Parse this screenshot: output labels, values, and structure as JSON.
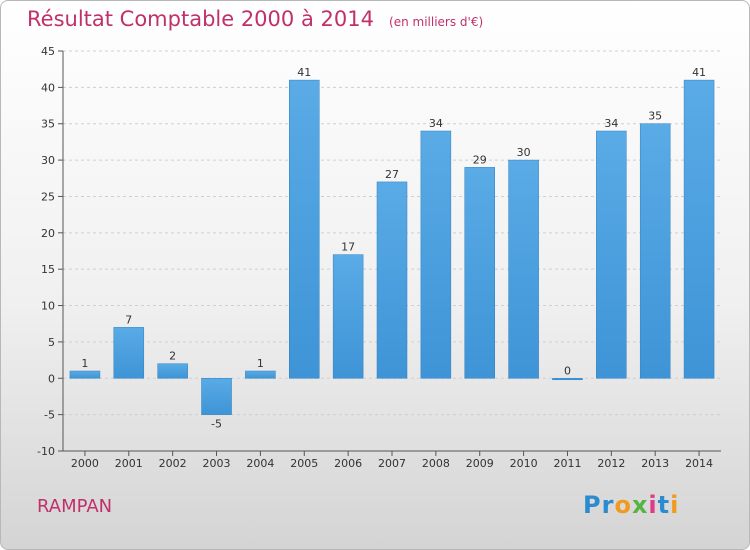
{
  "header": {
    "title": "Résultat Comptable 2000 à 2014",
    "subtitle": "(en milliers d'€)"
  },
  "footer": {
    "commune": "RAMPAN",
    "logo_letters": [
      {
        "ch": "P",
        "color": "#2a8bd0"
      },
      {
        "ch": "r",
        "color": "#2a8bd0"
      },
      {
        "ch": "o",
        "color": "#f29a1f"
      },
      {
        "ch": "x",
        "color": "#56b540"
      },
      {
        "ch": "i",
        "color": "#e23a8a"
      },
      {
        "ch": "t",
        "color": "#2a8bd0"
      },
      {
        "ch": "i",
        "color": "#f29a1f"
      }
    ]
  },
  "colors": {
    "bar": "#3e94d6",
    "bar_light": "#5aabe6",
    "grid": "#cfcfcf"
  },
  "chart_data": {
    "type": "bar",
    "categories": [
      "2000",
      "2001",
      "2002",
      "2003",
      "2004",
      "2005",
      "2006",
      "2007",
      "2008",
      "2009",
      "2010",
      "2011",
      "2012",
      "2013",
      "2014"
    ],
    "values": [
      1,
      7,
      2,
      -5,
      1,
      41,
      17,
      27,
      34,
      29,
      30,
      0,
      34,
      35,
      41
    ],
    "data_labels": [
      "1",
      "7",
      "2",
      "-5",
      "1",
      "41",
      "17",
      "27",
      "34",
      "29",
      "30",
      "0",
      "34",
      "35",
      "41"
    ],
    "ylim": [
      -10,
      45
    ],
    "yticks": [
      -10,
      -5,
      0,
      5,
      10,
      15,
      20,
      25,
      30,
      35,
      40,
      45
    ],
    "grid": "horizontal dashed",
    "title": "Résultat Comptable 2000 à 2014",
    "xlabel": "",
    "ylabel": ""
  }
}
